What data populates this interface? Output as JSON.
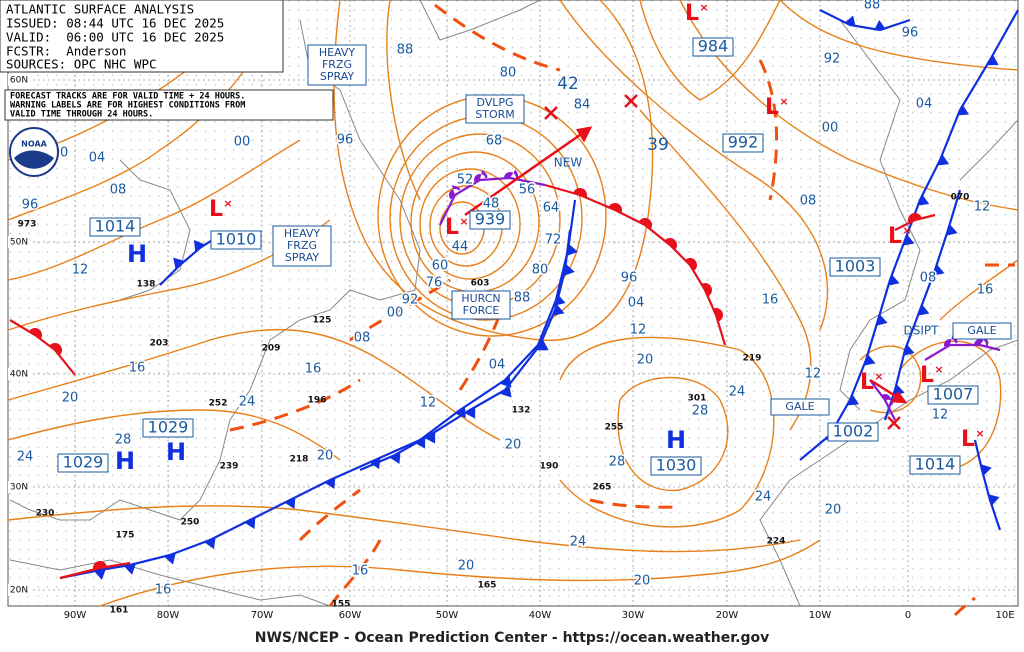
{
  "header": {
    "title": "ATLANTIC SURFACE ANALYSIS",
    "issued": "ISSUED: 08:44 UTC 16 DEC 2025",
    "valid": "VALID:  06:00 UTC 16 DEC 2025",
    "forecaster": "FCSTR:  Anderson",
    "sources": "SOURCES: OPC NHC WPC"
  },
  "note": [
    "FORECAST TRACKS ARE FOR VALID TIME + 24 HOURS.",
    "WARNING LABELS ARE FOR HIGHEST CONDITIONS FROM",
    "VALID TIME THROUGH 24 HOURS."
  ],
  "logo": "NOAA",
  "pressure_systems": [
    {
      "symbol": "H",
      "pressure": "1014"
    },
    {
      "symbol": "L",
      "pressure": "1010"
    },
    {
      "symbol": "L",
      "pressure": "939"
    },
    {
      "symbol": "L",
      "pressure": "984"
    },
    {
      "symbol": "L",
      "pressure": "992"
    },
    {
      "symbol": "L",
      "pressure": "1003"
    },
    {
      "symbol": "L",
      "pressure": "1007"
    },
    {
      "symbol": "L",
      "pressure": "1002"
    },
    {
      "symbol": "L",
      "pressure": "1014"
    },
    {
      "symbol": "H",
      "pressure": "1029"
    },
    {
      "symbol": "H",
      "pressure": "1029"
    },
    {
      "symbol": "H",
      "pressure": "1030"
    }
  ],
  "warnings": [
    [
      "HEAVY",
      "FRZG",
      "SPRAY"
    ],
    [
      "DVLPG",
      "STORM"
    ],
    [
      "HEAVY",
      "FRZG",
      "SPRAY"
    ],
    [
      "HURCN",
      "FORCE"
    ],
    [
      "GALE"
    ],
    [
      "GALE"
    ]
  ],
  "annotations": [
    "NEW",
    "DSIPT",
    "42",
    "39"
  ],
  "isobar_labels": [
    "88",
    "96",
    "00",
    "04",
    "08",
    "96",
    "00",
    "80",
    "84",
    "68",
    "52",
    "56",
    "48",
    "44",
    "64",
    "72",
    "80",
    "88",
    "92",
    "00",
    "60",
    "76",
    "08",
    "16",
    "04",
    "12",
    "96",
    "04",
    "12",
    "20",
    "28",
    "28",
    "24",
    "24",
    "20",
    "20",
    "16",
    "16",
    "20",
    "24",
    "16",
    "08",
    "00",
    "92",
    "88",
    "96",
    "04",
    "08",
    "16",
    "12",
    "12",
    "12",
    "20",
    "24",
    "20",
    "28",
    "12",
    "16",
    "20",
    "24"
  ],
  "station_values": [
    "973",
    "138",
    "203",
    "209",
    "125",
    "196",
    "218",
    "239",
    "252",
    "250",
    "175",
    "190",
    "132",
    "255",
    "301",
    "265",
    "219",
    "224",
    "165",
    "161",
    "155",
    "603",
    "230",
    "070"
  ],
  "lat_labels": [
    "60N",
    "50N",
    "40N",
    "30N",
    "20N"
  ],
  "lon_labels": [
    "90W",
    "80W",
    "70W",
    "60W",
    "50W",
    "40W",
    "30W",
    "20W",
    "10W",
    "0",
    "10E"
  ],
  "footer": "NWS/NCEP - Ocean Prediction Center - https://ocean.weather.gov"
}
